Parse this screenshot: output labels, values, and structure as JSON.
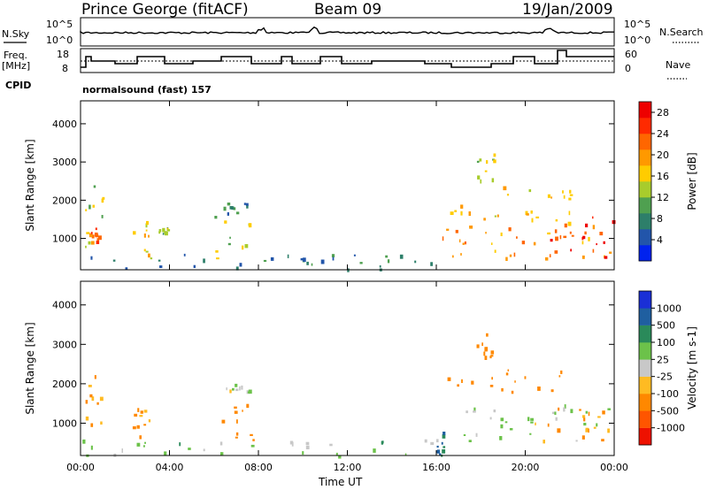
{
  "header": {
    "station": "Prince George (fitACF)",
    "beam": "Beam 09",
    "date": "19/Jan/2009"
  },
  "status_panel": {
    "left_labels": [
      "N.Sky",
      "Freq.",
      "[MHz]",
      "CPID"
    ],
    "right_labels": [
      "N.Search",
      "Nave"
    ],
    "nsky_ticks": [
      "10^5",
      "10^0"
    ],
    "nsearch_ticks": [
      "10^5",
      "10^0"
    ],
    "freq_ticks": [
      "18",
      "8"
    ],
    "nave_ticks": [
      "60",
      "0"
    ],
    "cpid_text": "normalsound (fast) 157"
  },
  "chart_data": [
    {
      "type": "heatmap",
      "name": "power",
      "ylabel": "Slant Range [km]",
      "xlabel": "",
      "xlim": [
        "00:00",
        "00:00"
      ],
      "ylim": [
        180,
        4600
      ],
      "x_ticks": [
        "00:00",
        "04:00",
        "08:00",
        "12:00",
        "16:00",
        "20:00",
        "00:00"
      ],
      "y_ticks": [
        1000,
        2000,
        3000,
        4000
      ],
      "colorbar": {
        "label": "Power [dB]",
        "ticks": [
          4,
          8,
          12,
          16,
          20,
          24,
          28
        ],
        "range": [
          0,
          30
        ],
        "colors": [
          "#0022ee",
          "#2255aa",
          "#2d7f6a",
          "#4fa050",
          "#a8cc2c",
          "#ffcc00",
          "#ff9900",
          "#ff6600",
          "#ff2a00",
          "#ee0000"
        ]
      },
      "echo_regions": [
        {
          "t0": 0.2,
          "t1": 1.0,
          "r0": 800,
          "r1": 2400,
          "level": 14
        },
        {
          "t0": 0.3,
          "t1": 0.8,
          "r0": 900,
          "r1": 1300,
          "level": 22
        },
        {
          "t0": 2.3,
          "t1": 3.2,
          "r0": 500,
          "r1": 1500,
          "level": 16
        },
        {
          "t0": 3.5,
          "t1": 3.9,
          "r0": 1100,
          "r1": 1300,
          "level": 12
        },
        {
          "t0": 6.0,
          "t1": 7.8,
          "r0": 500,
          "r1": 1600,
          "level": 14
        },
        {
          "t0": 6.4,
          "t1": 7.6,
          "r0": 1600,
          "r1": 2000,
          "level": 8
        },
        {
          "t0": 0.0,
          "t1": 16.0,
          "r0": 180,
          "r1": 600,
          "level": 8
        },
        {
          "t0": 16.0,
          "t1": 24.0,
          "r0": 500,
          "r1": 1500,
          "level": 20
        },
        {
          "t0": 21.0,
          "t1": 24.0,
          "r0": 500,
          "r1": 1600,
          "level": 27
        },
        {
          "t0": 16.5,
          "t1": 22.5,
          "r0": 1500,
          "r1": 2400,
          "level": 16
        },
        {
          "t0": 17.8,
          "t1": 18.6,
          "r0": 2500,
          "r1": 3300,
          "level": 14
        }
      ]
    },
    {
      "type": "heatmap",
      "name": "velocity",
      "ylabel": "Slant Range [km]",
      "xlabel": "Time UT",
      "xlim": [
        "00:00",
        "00:00"
      ],
      "ylim": [
        180,
        4600
      ],
      "x_ticks": [
        "00:00",
        "04:00",
        "08:00",
        "12:00",
        "16:00",
        "20:00",
        "00:00"
      ],
      "y_ticks": [
        1000,
        2000,
        3000,
        4000
      ],
      "colorbar": {
        "label": "Velocity [m s-1]",
        "ticks": [
          "1000",
          "500",
          "100",
          "25",
          "-25",
          "-100",
          "-500",
          "-1000"
        ],
        "colors": [
          "#1a2fd6",
          "#1f5fa0",
          "#2a8a5a",
          "#6cc24a",
          "#c8c8c8",
          "#ffbb22",
          "#ff8800",
          "#ff5500",
          "#ee1100"
        ]
      },
      "echo_regions": [
        {
          "t0": 0.2,
          "t1": 1.0,
          "r0": 800,
          "r1": 2400,
          "velocity": -100
        },
        {
          "t0": 2.3,
          "t1": 3.2,
          "r0": 500,
          "r1": 1400,
          "velocity": -100
        },
        {
          "t0": 6.0,
          "t1": 7.8,
          "r0": 500,
          "r1": 1500,
          "velocity": -200
        },
        {
          "t0": 6.5,
          "t1": 7.6,
          "r0": 1800,
          "r1": 2050,
          "velocity": 0
        },
        {
          "t0": 0.0,
          "t1": 16.0,
          "r0": 180,
          "r1": 600,
          "velocity": 60
        },
        {
          "t0": 15.9,
          "t1": 16.3,
          "r0": 180,
          "r1": 900,
          "velocity": 500
        },
        {
          "t0": 16.5,
          "t1": 24.0,
          "r0": 500,
          "r1": 1500,
          "velocity": 0
        },
        {
          "t0": 21.0,
          "t1": 24.0,
          "r0": 500,
          "r1": 1400,
          "velocity": -150
        },
        {
          "t0": 16.5,
          "t1": 22.5,
          "r0": 1800,
          "r1": 2400,
          "velocity": -200
        },
        {
          "t0": 17.8,
          "t1": 18.6,
          "r0": 2500,
          "r1": 3300,
          "velocity": -200
        }
      ]
    }
  ]
}
